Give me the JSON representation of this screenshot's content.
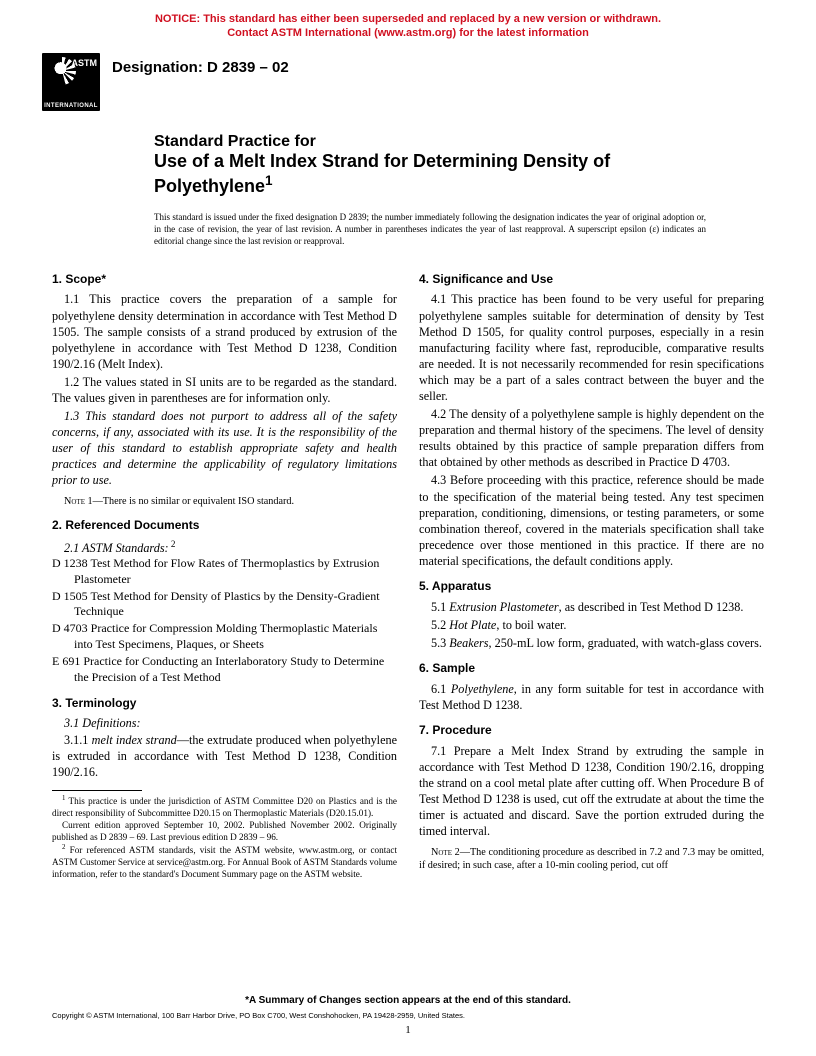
{
  "notice": {
    "line1": "NOTICE: This standard has either been superseded and replaced by a new version or withdrawn.",
    "line2": "Contact ASTM International (www.astm.org) for the latest information"
  },
  "logo": {
    "top": "ASTM",
    "bottom": "INTERNATIONAL"
  },
  "designation": "Designation: D 2839 – 02",
  "title": {
    "pre": "Standard Practice for",
    "main_l1": "Use of a Melt Index Strand for Determining Density of",
    "main_l2": "Polyethylene"
  },
  "sup1": "1",
  "issuance": "This standard is issued under the fixed designation D 2839; the number immediately following the designation indicates the year of original adoption or, in the case of revision, the year of last revision. A number in parentheses indicates the year of last reapproval. A superscript epsilon (ε) indicates an editorial change since the last revision or reapproval.",
  "sections": {
    "s1": {
      "head": "1. Scope*",
      "p1": "1.1 This practice covers the preparation of a sample for polyethylene density determination in accordance with Test Method D 1505. The sample consists of a strand produced by extrusion of the polyethylene in accordance with Test Method D 1238, Condition 190/2.16 (Melt Index).",
      "p2": "1.2 The values stated in SI units are to be regarded as the standard. The values given in parentheses are for information only.",
      "p3": "1.3 This standard does not purport to address all of the safety concerns, if any, associated with its use. It is the responsibility of the user of this standard to establish appropriate safety and health practices and determine the applicability of regulatory limitations prior to use."
    },
    "note1": {
      "label": "Note 1—",
      "text": "There is no similar or equivalent ISO standard."
    },
    "s2": {
      "head": "2. Referenced Documents",
      "sub": "2.1 ASTM Standards:",
      "sup2": " 2",
      "refs": [
        "D 1238 Test Method for Flow Rates of Thermoplastics by Extrusion Plastometer",
        "D 1505 Test Method for Density of Plastics by the Density-Gradient Technique",
        "D 4703 Practice for Compression Molding Thermoplastic Materials into Test Specimens, Plaques, or Sheets",
        "E 691 Practice for Conducting an Interlaboratory Study to Determine the Precision of a Test Method"
      ]
    },
    "s3": {
      "head": "3. Terminology",
      "p1": "3.1 Definitions:",
      "p2a": "3.1.1 ",
      "p2term": "melt index strand",
      "p2b": "—the extrudate produced when polyethylene is extruded in accordance with Test Method D 1238, Condition 190/2.16."
    },
    "s4": {
      "head": "4. Significance and Use",
      "p1": "4.1 This practice has been found to be very useful for preparing polyethylene samples suitable for determination of density by Test Method D 1505, for quality control purposes, especially in a resin manufacturing facility where fast, reproducible, comparative results are needed. It is not necessarily recommended for resin specifications which may be a part of a sales contract between the buyer and the seller.",
      "p2": "4.2 The density of a polyethylene sample is highly dependent on the preparation and thermal history of the specimens. The level of density results obtained by this practice of sample preparation differs from that obtained by other methods as described in Practice D 4703.",
      "p3": "4.3 Before proceeding with this practice, reference should be made to the specification of the material being tested. Any test specimen preparation, conditioning, dimensions, or testing parameters, or some combination thereof, covered in the materials specification shall take precedence over those mentioned in this practice. If there are no material specifications, the default conditions apply."
    },
    "s5": {
      "head": "5. Apparatus",
      "p1a": "5.1 ",
      "p1term": "Extrusion Plastometer",
      "p1b": ", as described in Test Method D 1238.",
      "p2a": "5.2 ",
      "p2term": "Hot Plate",
      "p2b": ", to boil water.",
      "p3a": "5.3 ",
      "p3term": "Beakers",
      "p3b": ", 250-mL low form, graduated, with watch-glass covers."
    },
    "s6": {
      "head": "6. Sample",
      "p1a": "6.1 ",
      "p1term": "Polyethylene",
      "p1b": ", in any form suitable for test in accordance with Test Method D 1238."
    },
    "s7": {
      "head": "7. Procedure",
      "p1": "7.1 Prepare a Melt Index Strand by extruding the sample in accordance with Test Method D 1238, Condition 190/2.16, dropping the strand on a cool metal plate after cutting off. When Procedure B of Test Method D 1238 is used, cut off the extrudate at about the time the timer is actuated and discard. Save the portion extruded during the timed interval."
    },
    "note2": {
      "label": "Note 2—",
      "text": "The conditioning procedure as described in 7.2 and 7.3 may be omitted, if desired; in such case, after a 10-min cooling period, cut off"
    }
  },
  "footnotes": {
    "f1a": "1",
    "f1": " This practice is under the jurisdiction of ASTM Committee D20 on Plastics and is the direct responsibility of Subcommittee D20.15 on Thermoplastic Materials (D20.15.01).",
    "f1b": "Current edition approved September 10, 2002. Published November 2002. Originally published as D 2839 – 69. Last previous edition D 2839 – 96.",
    "f2a": "2",
    "f2": " For referenced ASTM standards, visit the ASTM website, www.astm.org, or contact ASTM Customer Service at service@astm.org. For Annual Book of ASTM Standards volume information, refer to the standard's Document Summary page on the ASTM website."
  },
  "footer": {
    "summary": "*A Summary of Changes section appears at the end of this standard.",
    "copyright": "Copyright © ASTM International, 100 Barr Harbor Drive, PO Box C700, West Conshohocken, PA 19428-2959, United States.",
    "page": "1"
  }
}
